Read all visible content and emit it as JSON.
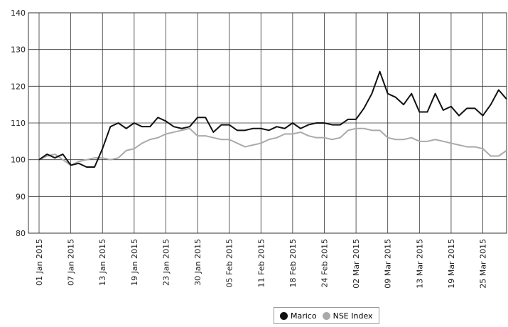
{
  "chart_data": {
    "type": "line",
    "categories": [
      "01 Jan 2015",
      null,
      null,
      null,
      "07 Jan 2015",
      null,
      null,
      null,
      "13 Jan 2015",
      null,
      null,
      null,
      "19 Jan 2015",
      null,
      null,
      null,
      "23 Jan 2015",
      null,
      null,
      null,
      "30 Jan 2015",
      null,
      null,
      null,
      "05 Feb 2015",
      null,
      null,
      null,
      "11 Feb 2015",
      null,
      null,
      null,
      "18 Feb 2015",
      null,
      null,
      null,
      "24 Feb 2015",
      null,
      null,
      null,
      "02 Mar 2015",
      null,
      null,
      null,
      "09 Mar 2015",
      null,
      null,
      null,
      "13 Mar 2015",
      null,
      null,
      null,
      "19 Mar 2015",
      null,
      null,
      null,
      "25 Mar 2015",
      null,
      null,
      null
    ],
    "series": [
      {
        "name": "Marico",
        "color": "#111111",
        "values": [
          100,
          101.5,
          100.5,
          101.5,
          98.5,
          99,
          98,
          98,
          103,
          109,
          110,
          108.5,
          110,
          109,
          109,
          111.5,
          110.5,
          109,
          108.5,
          109,
          111.5,
          111.5,
          107.5,
          109.5,
          109.5,
          108,
          108,
          108.5,
          108.5,
          108,
          109,
          108.5,
          110,
          108.5,
          109.5,
          110,
          110,
          109.5,
          109.5,
          111,
          111,
          114,
          118,
          124,
          118,
          117,
          115,
          118,
          113,
          113,
          118,
          113.5,
          114.5,
          112,
          114,
          114,
          112,
          115,
          119,
          116.5
        ]
      },
      {
        "name": "NSE Index",
        "color": "#aaaaaa",
        "values": [
          100,
          101,
          101.5,
          100,
          98.5,
          99.5,
          100,
          100.5,
          100.5,
          100,
          100.5,
          102.5,
          103,
          104.5,
          105.5,
          106,
          107,
          107.5,
          108,
          108.5,
          106.5,
          106.5,
          106,
          105.5,
          105.5,
          104.5,
          103.5,
          104,
          104.5,
          105.5,
          106,
          107,
          107,
          107.5,
          106.5,
          106,
          106,
          105.5,
          106,
          108,
          108.5,
          108.5,
          108,
          108,
          106,
          105.5,
          105.5,
          106,
          105,
          105,
          105.5,
          105,
          104.5,
          104,
          103.5,
          103.5,
          103,
          101,
          101,
          102.5
        ]
      }
    ],
    "ylim": [
      80,
      140
    ],
    "yticks": [
      80,
      90,
      100,
      110,
      120,
      130,
      140
    ],
    "grid": true
  }
}
